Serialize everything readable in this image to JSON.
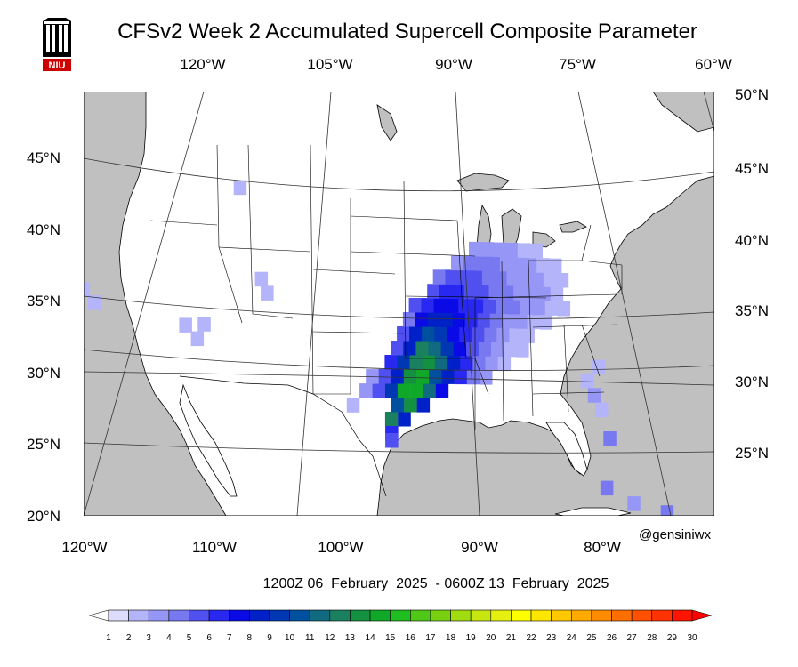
{
  "title": "CFSv2 Week 2 Accumulated Supercell Composite Parameter",
  "logo_text": "NIU",
  "credit": "@gensiniwx",
  "period": "1200Z 06  February  2025  - 0600Z 13  February  2025",
  "top_lon_labels": [
    "120°W",
    "105°W",
    "90°W",
    "75°W",
    "60°W"
  ],
  "bottom_lon_labels": [
    "120°W",
    "110°W",
    "100°W",
    "90°W",
    "80°W"
  ],
  "left_lat_labels": [
    "45°N",
    "40°N",
    "35°N",
    "30°N",
    "25°N",
    "20°N"
  ],
  "right_lat_labels": [
    "50°N",
    "45°N",
    "40°N",
    "35°N",
    "30°N",
    "25°N"
  ],
  "colors": {
    "ocean": "#c0c0c0",
    "land": "#ffffff",
    "border": "#000000",
    "grid": "#333333"
  },
  "colorbar": {
    "labels": [
      "1",
      "2",
      "3",
      "4",
      "5",
      "6",
      "7",
      "8",
      "9",
      "10",
      "11",
      "12",
      "13",
      "14",
      "15",
      "16",
      "17",
      "18",
      "19",
      "20",
      "21",
      "22",
      "23",
      "24",
      "25",
      "26",
      "27",
      "28",
      "29",
      "30"
    ],
    "colors": [
      "#ffffff",
      "#dcdcfc",
      "#b4b4fa",
      "#9696f6",
      "#7878f0",
      "#5050f0",
      "#2828f0",
      "#0a0ae6",
      "#0020c8",
      "#0038b4",
      "#0050a0",
      "#106a80",
      "#1a8060",
      "#139040",
      "#10a828",
      "#20be20",
      "#50c818",
      "#78d010",
      "#a0dc10",
      "#c8e610",
      "#e6f010",
      "#ffff00",
      "#ffe600",
      "#ffc800",
      "#ffaa00",
      "#ff8c00",
      "#ff6e00",
      "#ff5000",
      "#ff3200",
      "#ff1400",
      "#ff0000"
    ]
  },
  "data_grid": {
    "description_free": true,
    "cells": [
      [
        -97.5,
        27.0,
        12
      ],
      [
        -96.5,
        27.0,
        8
      ],
      [
        -97.0,
        28.0,
        10
      ],
      [
        -96.0,
        28.0,
        13
      ],
      [
        -95.0,
        28.0,
        8
      ],
      [
        -97.5,
        29.0,
        9
      ],
      [
        -96.5,
        29.0,
        14
      ],
      [
        -95.5,
        29.0,
        14
      ],
      [
        -94.5,
        29.0,
        11
      ],
      [
        -93.5,
        29.0,
        7
      ],
      [
        -98.5,
        29.0,
        5
      ],
      [
        -99.5,
        29.0,
        3
      ],
      [
        -100.5,
        28.0,
        2
      ],
      [
        -97.0,
        30.0,
        8
      ],
      [
        -96.0,
        30.0,
        13
      ],
      [
        -95.0,
        30.0,
        14
      ],
      [
        -94.0,
        30.0,
        10
      ],
      [
        -93.0,
        30.0,
        8
      ],
      [
        -92.0,
        30.0,
        6
      ],
      [
        -91.0,
        30.0,
        4
      ],
      [
        -90.0,
        30.0,
        3
      ],
      [
        -98.0,
        30.0,
        5
      ],
      [
        -99.0,
        30.0,
        3
      ],
      [
        -97.5,
        31.0,
        6
      ],
      [
        -96.5,
        31.0,
        9
      ],
      [
        -95.5,
        31.0,
        12
      ],
      [
        -94.5,
        31.0,
        13
      ],
      [
        -93.5,
        31.0,
        11
      ],
      [
        -92.5,
        31.0,
        8
      ],
      [
        -91.5,
        31.0,
        6
      ],
      [
        -90.5,
        31.0,
        4
      ],
      [
        -89.5,
        31.0,
        3
      ],
      [
        -88.5,
        31.0,
        2
      ],
      [
        -97.0,
        32.0,
        5
      ],
      [
        -96.0,
        32.0,
        8
      ],
      [
        -95.0,
        32.0,
        12
      ],
      [
        -94.0,
        32.0,
        11
      ],
      [
        -93.0,
        32.0,
        9
      ],
      [
        -92.0,
        32.0,
        7
      ],
      [
        -91.0,
        32.0,
        5
      ],
      [
        -90.0,
        32.0,
        4
      ],
      [
        -89.0,
        32.0,
        3
      ],
      [
        -88.0,
        32.0,
        2
      ],
      [
        -87.0,
        32.0,
        2
      ],
      [
        -96.5,
        33.0,
        5
      ],
      [
        -95.5,
        33.0,
        8
      ],
      [
        -94.5,
        33.0,
        10
      ],
      [
        -93.5,
        33.0,
        9
      ],
      [
        -92.5,
        33.0,
        7
      ],
      [
        -91.5,
        33.0,
        6
      ],
      [
        -90.5,
        33.0,
        5
      ],
      [
        -89.5,
        33.0,
        4
      ],
      [
        -88.5,
        33.0,
        3
      ],
      [
        -87.5,
        33.0,
        2
      ],
      [
        -86.5,
        33.0,
        2
      ],
      [
        -96.0,
        34.0,
        4
      ],
      [
        -95.0,
        34.0,
        7
      ],
      [
        -94.0,
        34.0,
        8
      ],
      [
        -93.0,
        34.0,
        8
      ],
      [
        -92.0,
        34.0,
        7
      ],
      [
        -91.0,
        34.0,
        6
      ],
      [
        -90.0,
        34.0,
        5
      ],
      [
        -89.0,
        34.0,
        4
      ],
      [
        -88.0,
        34.0,
        3
      ],
      [
        -87.0,
        34.0,
        3
      ],
      [
        -86.0,
        34.0,
        2
      ],
      [
        -85.0,
        34.0,
        2
      ],
      [
        -95.5,
        35.0,
        5
      ],
      [
        -94.5,
        35.0,
        6
      ],
      [
        -93.5,
        35.0,
        7
      ],
      [
        -92.5,
        35.0,
        7
      ],
      [
        -91.5,
        35.0,
        6
      ],
      [
        -90.5,
        35.0,
        6
      ],
      [
        -89.5,
        35.0,
        5
      ],
      [
        -88.5,
        35.0,
        4
      ],
      [
        -87.5,
        35.0,
        4
      ],
      [
        -86.5,
        35.0,
        3
      ],
      [
        -85.5,
        35.0,
        3
      ],
      [
        -84.5,
        35.0,
        2
      ],
      [
        -83.5,
        35.0,
        2
      ],
      [
        -94.0,
        36.0,
        5
      ],
      [
        -93.0,
        36.0,
        6
      ],
      [
        -92.0,
        36.0,
        6
      ],
      [
        -91.0,
        36.0,
        5
      ],
      [
        -90.0,
        36.0,
        5
      ],
      [
        -89.0,
        36.0,
        4
      ],
      [
        -88.0,
        36.0,
        4
      ],
      [
        -87.0,
        36.0,
        3
      ],
      [
        -86.0,
        36.0,
        3
      ],
      [
        -85.0,
        36.0,
        3
      ],
      [
        -84.0,
        36.0,
        2
      ],
      [
        -93.5,
        37.0,
        4
      ],
      [
        -92.5,
        37.0,
        5
      ],
      [
        -91.5,
        37.0,
        5
      ],
      [
        -90.5,
        37.0,
        5
      ],
      [
        -89.5,
        37.0,
        4
      ],
      [
        -88.5,
        37.0,
        4
      ],
      [
        -87.5,
        37.0,
        3
      ],
      [
        -86.5,
        37.0,
        3
      ],
      [
        -85.5,
        37.0,
        3
      ],
      [
        -84.5,
        37.0,
        2
      ],
      [
        -83.5,
        37.0,
        2
      ],
      [
        -92.0,
        38.0,
        3
      ],
      [
        -91.0,
        38.0,
        4
      ],
      [
        -90.0,
        38.0,
        4
      ],
      [
        -89.0,
        38.0,
        4
      ],
      [
        -88.0,
        38.0,
        3
      ],
      [
        -87.0,
        38.0,
        3
      ],
      [
        -86.0,
        38.0,
        3
      ],
      [
        -85.0,
        38.0,
        2
      ],
      [
        -84.0,
        38.0,
        2
      ],
      [
        -90.5,
        39.0,
        3
      ],
      [
        -89.5,
        39.0,
        3
      ],
      [
        -88.5,
        39.0,
        3
      ],
      [
        -87.5,
        39.0,
        3
      ],
      [
        -86.5,
        39.0,
        2
      ],
      [
        -85.5,
        39.0,
        2
      ],
      [
        -81.0,
        31.0,
        2
      ],
      [
        -82.0,
        30.0,
        2
      ],
      [
        -81.5,
        29.0,
        3
      ],
      [
        -81.0,
        28.0,
        2
      ],
      [
        -80.5,
        26.0,
        4
      ],
      [
        -97.5,
        26.0,
        6
      ],
      [
        -97.5,
        25.5,
        5
      ],
      [
        -114.0,
        34.0,
        2
      ],
      [
        -112.5,
        34.0,
        2
      ],
      [
        -113.0,
        33.0,
        2
      ],
      [
        -108.0,
        37.0,
        2
      ],
      [
        -107.5,
        36.0,
        2
      ],
      [
        -122.5,
        37.0,
        2
      ],
      [
        -121.5,
        36.0,
        2
      ],
      [
        -110.0,
        43.5,
        2
      ],
      [
        -81.0,
        22.5,
        4
      ],
      [
        -79.0,
        21.5,
        3
      ],
      [
        -76.5,
        21.0,
        4
      ]
    ]
  }
}
